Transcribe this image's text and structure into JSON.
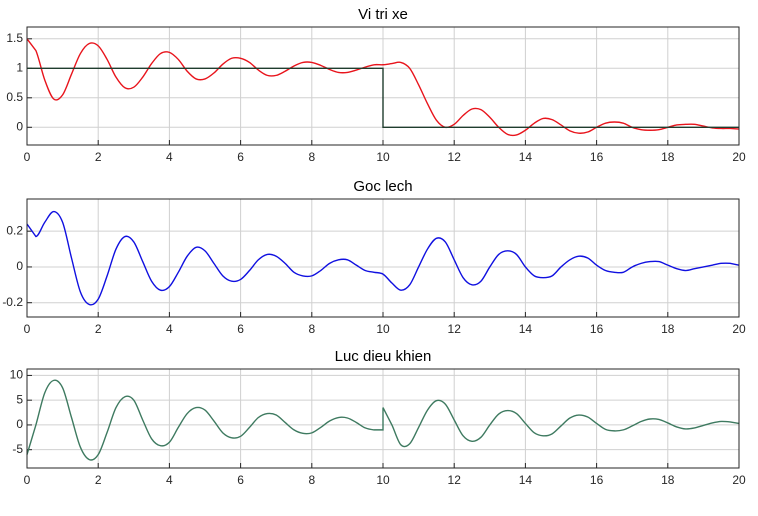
{
  "chart_data": [
    {
      "type": "line",
      "title": "Vi tri xe",
      "xlim": [
        0,
        20
      ],
      "ylim": [
        -0.3,
        1.7
      ],
      "xticks": [
        0,
        2,
        4,
        6,
        8,
        10,
        12,
        14,
        16,
        18,
        20
      ],
      "yticks": [
        0,
        0.5,
        1,
        1.5
      ],
      "grid": true,
      "x": [
        0,
        0.25,
        0.5,
        0.75,
        1,
        1.25,
        1.5,
        1.75,
        2,
        2.25,
        2.5,
        2.75,
        3,
        3.25,
        3.5,
        3.75,
        4,
        4.25,
        4.5,
        4.75,
        5,
        5.25,
        5.5,
        5.75,
        6,
        6.25,
        6.5,
        6.75,
        7,
        7.25,
        7.5,
        7.75,
        8,
        8.25,
        8.5,
        8.75,
        9,
        9.25,
        9.5,
        9.75,
        10,
        10.25,
        10.5,
        10.75,
        11,
        11.25,
        11.5,
        11.75,
        12,
        12.25,
        12.5,
        12.75,
        13,
        13.25,
        13.5,
        13.75,
        14,
        14.25,
        14.5,
        14.75,
        15,
        15.25,
        15.5,
        15.75,
        16,
        16.25,
        16.5,
        16.75,
        17,
        17.25,
        17.5,
        17.75,
        18,
        18.25,
        18.5,
        18.75,
        19,
        19.25,
        19.5,
        19.75,
        20
      ],
      "series": [
        {
          "color": "#e8141c",
          "values": [
            1.5,
            1.3,
            0.8,
            0.48,
            0.55,
            0.9,
            1.25,
            1.42,
            1.38,
            1.15,
            0.85,
            0.67,
            0.68,
            0.85,
            1.08,
            1.25,
            1.27,
            1.15,
            0.95,
            0.82,
            0.82,
            0.92,
            1.07,
            1.17,
            1.17,
            1.1,
            0.97,
            0.88,
            0.88,
            0.95,
            1.04,
            1.1,
            1.1,
            1.05,
            0.98,
            0.93,
            0.93,
            0.97,
            1.02,
            1.06,
            1.06,
            1.08,
            1.1,
            1.0,
            0.72,
            0.4,
            0.12,
            0.0,
            0.05,
            0.2,
            0.31,
            0.3,
            0.17,
            0.0,
            -0.12,
            -0.13,
            -0.05,
            0.07,
            0.15,
            0.13,
            0.04,
            -0.06,
            -0.1,
            -0.08,
            0.0,
            0.07,
            0.09,
            0.07,
            0.0,
            -0.04,
            -0.05,
            -0.04,
            0.0,
            0.04,
            0.05,
            0.05,
            0.02,
            -0.01,
            -0.02,
            -0.02,
            -0.03
          ]
        },
        {
          "color": "#1f3d2e",
          "x": [
            0,
            10,
            10,
            20
          ],
          "values": [
            1,
            1,
            0,
            0
          ]
        }
      ]
    },
    {
      "type": "line",
      "title": "Goc lech",
      "xlim": [
        0,
        20
      ],
      "ylim": [
        -0.28,
        0.38
      ],
      "xticks": [
        0,
        2,
        4,
        6,
        8,
        10,
        12,
        14,
        16,
        18,
        20
      ],
      "yticks": [
        -0.2,
        0,
        0.2
      ],
      "grid": true,
      "x": [
        0,
        0.25,
        0.5,
        0.75,
        1,
        1.25,
        1.5,
        1.75,
        2,
        2.25,
        2.5,
        2.75,
        3,
        3.25,
        3.5,
        3.75,
        4,
        4.25,
        4.5,
        4.75,
        5,
        5.25,
        5.5,
        5.75,
        6,
        6.25,
        6.5,
        6.75,
        7,
        7.25,
        7.5,
        7.75,
        8,
        8.25,
        8.5,
        8.75,
        9,
        9.25,
        9.5,
        9.75,
        10,
        10.25,
        10.5,
        10.75,
        11,
        11.25,
        11.5,
        11.75,
        12,
        12.25,
        12.5,
        12.75,
        13,
        13.25,
        13.5,
        13.75,
        14,
        14.25,
        14.5,
        14.75,
        15,
        15.25,
        15.5,
        15.75,
        16,
        16.25,
        16.5,
        16.75,
        17,
        17.25,
        17.5,
        17.75,
        18,
        18.25,
        18.5,
        18.75,
        19,
        19.25,
        19.5,
        19.75,
        20
      ],
      "series": [
        {
          "color": "#1010e0",
          "values": [
            0.24,
            0.17,
            0.25,
            0.31,
            0.25,
            0.05,
            -0.14,
            -0.21,
            -0.18,
            -0.05,
            0.1,
            0.17,
            0.14,
            0.03,
            -0.08,
            -0.13,
            -0.11,
            -0.03,
            0.06,
            0.11,
            0.09,
            0.02,
            -0.05,
            -0.08,
            -0.07,
            -0.02,
            0.04,
            0.07,
            0.06,
            0.02,
            -0.03,
            -0.05,
            -0.05,
            -0.02,
            0.02,
            0.04,
            0.04,
            0.01,
            -0.02,
            -0.03,
            -0.04,
            -0.09,
            -0.13,
            -0.1,
            0.0,
            0.1,
            0.16,
            0.14,
            0.04,
            -0.06,
            -0.1,
            -0.08,
            0.0,
            0.07,
            0.09,
            0.07,
            0.0,
            -0.05,
            -0.06,
            -0.05,
            0.0,
            0.04,
            0.06,
            0.05,
            0.01,
            -0.02,
            -0.03,
            -0.03,
            0.0,
            0.02,
            0.03,
            0.03,
            0.01,
            -0.01,
            -0.02,
            -0.01,
            0.0,
            0.01,
            0.02,
            0.02,
            0.01
          ]
        }
      ]
    },
    {
      "type": "line",
      "title": "Luc dieu khien",
      "xlim": [
        0,
        20
      ],
      "ylim": [
        -8.7,
        11.3
      ],
      "xticks": [
        0,
        2,
        4,
        6,
        8,
        10,
        12,
        14,
        16,
        18,
        20
      ],
      "yticks": [
        -5,
        0,
        5,
        10
      ],
      "grid": true,
      "x": [
        0,
        0.25,
        0.5,
        0.75,
        1,
        1.25,
        1.5,
        1.75,
        2,
        2.25,
        2.5,
        2.75,
        3,
        3.25,
        3.5,
        3.75,
        4,
        4.25,
        4.5,
        4.75,
        5,
        5.25,
        5.5,
        5.75,
        6,
        6.25,
        6.5,
        6.75,
        7,
        7.25,
        7.5,
        7.75,
        8,
        8.25,
        8.5,
        8.75,
        9,
        9.25,
        9.5,
        9.75,
        10,
        10,
        10.25,
        10.5,
        10.75,
        11,
        11.25,
        11.5,
        11.75,
        12,
        12.25,
        12.5,
        12.75,
        13,
        13.25,
        13.5,
        13.75,
        14,
        14.25,
        14.5,
        14.75,
        15,
        15.25,
        15.5,
        15.75,
        16,
        16.25,
        16.5,
        16.75,
        17,
        17.25,
        17.5,
        17.75,
        18,
        18.25,
        18.5,
        18.75,
        19,
        19.25,
        19.5,
        19.75,
        20
      ],
      "series": [
        {
          "color": "#3e7a60",
          "values": [
            -6,
            0,
            6.5,
            9,
            7.5,
            1.5,
            -4.5,
            -7,
            -6,
            -1.5,
            3.5,
            5.7,
            5,
            1,
            -2.8,
            -4.2,
            -3.5,
            -0.5,
            2.3,
            3.5,
            3,
            0.8,
            -1.6,
            -2.6,
            -2.3,
            -0.5,
            1.5,
            2.3,
            2,
            0.5,
            -1,
            -1.7,
            -1.6,
            -0.5,
            0.8,
            1.5,
            1.4,
            0.5,
            -0.6,
            -1,
            -1,
            3.5,
            0,
            -4,
            -3.8,
            -0.5,
            3,
            4.9,
            4.2,
            1,
            -2.2,
            -3.3,
            -2.5,
            0,
            2.2,
            2.9,
            2.3,
            0.3,
            -1.6,
            -2.2,
            -1.8,
            -0.2,
            1.4,
            2,
            1.6,
            0.3,
            -0.9,
            -1.2,
            -1,
            -0.2,
            0.7,
            1.2,
            1.1,
            0.4,
            -0.4,
            -0.8,
            -0.6,
            -0.1,
            0.4,
            0.7,
            0.6,
            0.3
          ]
        }
      ]
    }
  ]
}
